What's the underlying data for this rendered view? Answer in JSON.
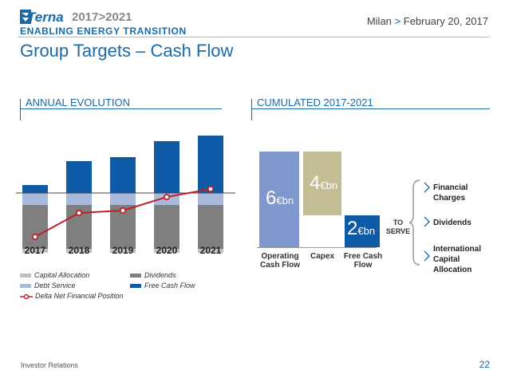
{
  "header": {
    "brand": "Terna",
    "years": "2017>2021",
    "tagline": "ENABLING ENERGY TRANSITION",
    "location": "Milan",
    "separator": ">",
    "date": "February 20, 2017"
  },
  "title": "Group Targets – Cash Flow",
  "sections": {
    "annual": "ANNUAL EVOLUTION",
    "cumulated": "CUMULATED 2017-2021"
  },
  "colors": {
    "capital_allocation": "#c0c0c0",
    "debt_service": "#a9b9dc",
    "dividends": "#7f7f7f",
    "free_cash_flow": "#0e5aa7",
    "delta_nfp": "#c0202a",
    "operating_cash_flow": "#7f97cc",
    "capex": "#c3bd96"
  },
  "chart_data": [
    {
      "type": "bar",
      "title": "ANNUAL EVOLUTION",
      "categories": [
        "2017",
        "2018",
        "2019",
        "2020",
        "2021"
      ],
      "series": [
        {
          "name": "Capital Allocation",
          "values": [
            -0.05,
            -0.05,
            -0.05,
            -0.05,
            -0.05
          ]
        },
        {
          "name": "Debt Service",
          "values": [
            -0.15,
            -0.15,
            -0.15,
            -0.15,
            -0.15
          ]
        },
        {
          "name": "Dividends",
          "values": [
            -0.55,
            -0.55,
            -0.55,
            -0.55,
            -0.55
          ]
        },
        {
          "name": "Free Cash Flow",
          "values": [
            0.1,
            0.4,
            0.45,
            0.65,
            0.75
          ]
        },
        {
          "name": "Delta Net Financial Position",
          "values": [
            -0.55,
            -0.25,
            -0.22,
            -0.05,
            0.05
          ]
        }
      ],
      "xlabel": "",
      "ylabel": "",
      "ylim": [
        -0.8,
        0.8
      ]
    },
    {
      "type": "bar",
      "title": "CUMULATED 2017-2021",
      "categories": [
        "Operating Cash Flow",
        "Capex",
        "Free Cash Flow"
      ],
      "values": [
        6,
        4,
        2
      ],
      "unit": "€bn",
      "ylim": [
        0,
        6
      ]
    }
  ],
  "legend": [
    {
      "label": "Capital Allocation",
      "color": "#c0c0c0",
      "kind": "bar"
    },
    {
      "label": "Dividends",
      "color": "#7f7f7f",
      "kind": "bar"
    },
    {
      "label": "Debt Service",
      "color": "#a9b9dc",
      "kind": "bar"
    },
    {
      "label": "Free Cash Flow",
      "color": "#0e5aa7",
      "kind": "bar"
    },
    {
      "label": "Delta Net Financial Position",
      "color": "#c0202a",
      "kind": "line"
    }
  ],
  "cumulated": {
    "ocf_value": "6",
    "capex_value": "4",
    "fcf_value": "2",
    "unit": "€bn",
    "ocf_label": "Operating Cash Flow",
    "capex_label": "Capex",
    "fcf_label": "Free Cash Flow",
    "to_serve": "TO SERVE",
    "uses": [
      "Financial Charges",
      "Dividends",
      "International Capital Allocation"
    ]
  },
  "footer": {
    "left": "Investor Relations",
    "page": "22"
  }
}
